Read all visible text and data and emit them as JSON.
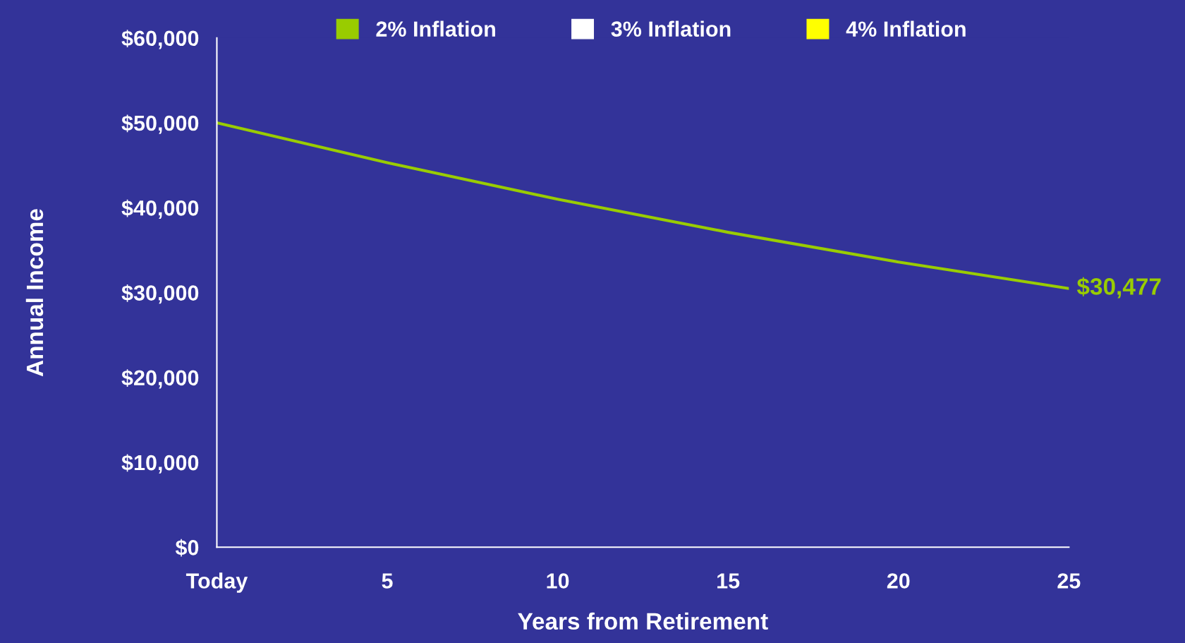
{
  "chart_data": {
    "type": "line",
    "xlabel": "Years from Retirement",
    "ylabel": "Annual Income",
    "x": [
      0,
      5,
      10,
      15,
      20,
      25
    ],
    "series": [
      {
        "name": "2% Inflation",
        "color": "#99cc00",
        "values": [
          50000,
          45300,
          41000,
          37100,
          33600,
          30477
        ],
        "value_labels": [
          null,
          null,
          null,
          null,
          null,
          "$30,477"
        ]
      },
      {
        "name": "3% Inflation",
        "color": "#ffffff",
        "values": [
          null,
          null,
          null,
          null,
          null,
          null
        ]
      },
      {
        "name": "4% Inflation",
        "color": "#ffff00",
        "values": [
          null,
          null,
          null,
          null,
          null,
          null
        ]
      }
    ],
    "xlim": [
      0,
      25
    ],
    "xticks": [
      {
        "value": 0,
        "label": "Today"
      },
      5,
      10,
      15,
      20,
      25
    ],
    "ylim": [
      0,
      60000
    ],
    "yticks": [
      {
        "value": 0,
        "label": "$0"
      },
      {
        "value": 10000,
        "label": "$10,000"
      },
      {
        "value": 20000,
        "label": "$20,000"
      },
      {
        "value": 30000,
        "label": "$30,000"
      },
      {
        "value": 40000,
        "label": "$40,000"
      },
      {
        "value": 50000,
        "label": "$50,000"
      },
      {
        "value": 60000,
        "label": "$60,000"
      }
    ],
    "legend": "top",
    "grid": false,
    "marker": "none",
    "line_style": "solid"
  }
}
